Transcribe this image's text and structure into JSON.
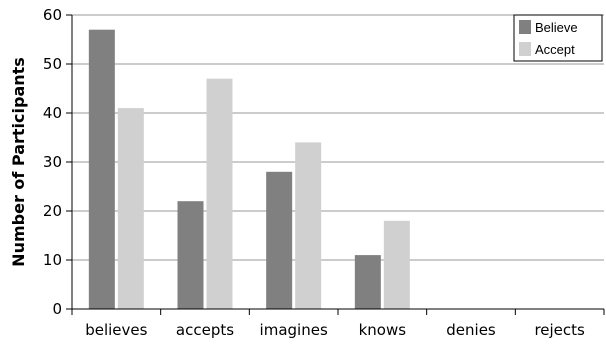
{
  "chart_data": {
    "type": "bar",
    "title": "",
    "xlabel": "",
    "ylabel": "Number of Participants",
    "categories": [
      "believes",
      "accepts",
      "imagines",
      "knows",
      "denies",
      "rejects"
    ],
    "series": [
      {
        "name": "Believe",
        "color": "#808080",
        "values": [
          57,
          22,
          28,
          11,
          0,
          0
        ]
      },
      {
        "name": "Accept",
        "color": "#d0d0d0",
        "values": [
          41,
          47,
          34,
          18,
          0,
          0
        ]
      }
    ],
    "ylim": [
      0,
      60
    ],
    "yticks": [
      0,
      10,
      20,
      30,
      40,
      50,
      60
    ],
    "grid": true,
    "legend_position": "top-right"
  }
}
